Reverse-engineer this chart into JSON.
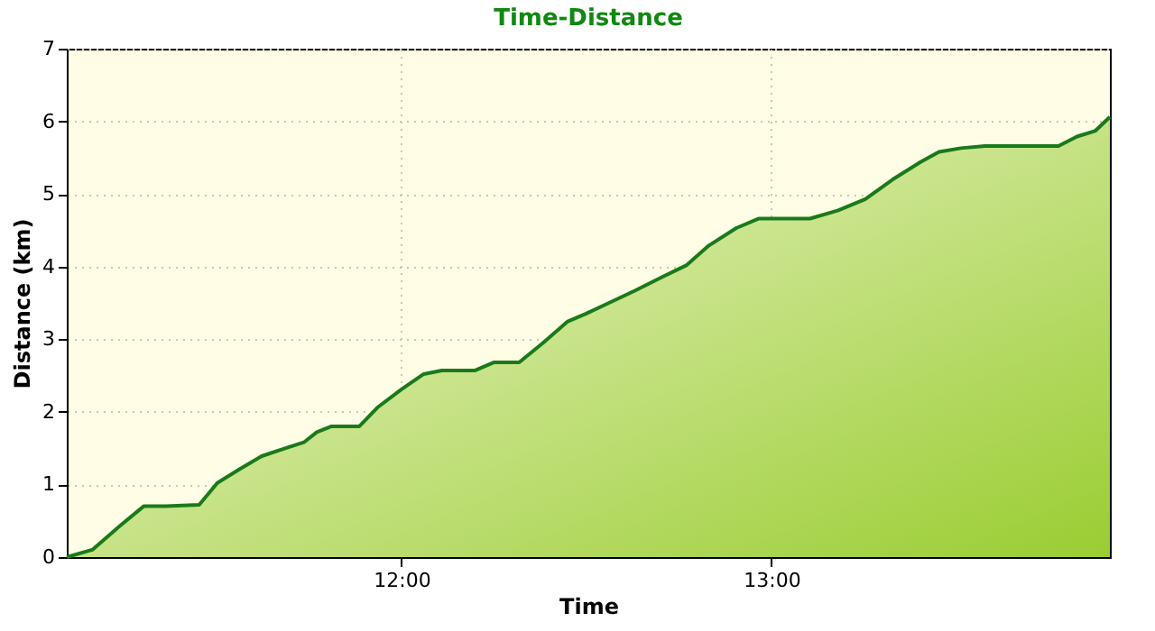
{
  "chart_data": {
    "type": "area",
    "title": "Time-Distance",
    "xlabel": "Time",
    "ylabel": "Distance (km)",
    "x": [
      11.095,
      11.164,
      11.239,
      11.303,
      11.363,
      11.453,
      11.502,
      11.562,
      11.622,
      11.687,
      11.736,
      11.771,
      11.811,
      11.886,
      11.935,
      12.0,
      12.06,
      12.109,
      12.199,
      12.249,
      12.318,
      12.383,
      12.448,
      12.498,
      12.557,
      12.632,
      12.706,
      12.771,
      12.831,
      12.905,
      12.965,
      13.005,
      13.104,
      13.179,
      13.254,
      13.328,
      13.403,
      13.453,
      13.512,
      13.577,
      13.701,
      13.776,
      13.826,
      13.876,
      13.915
    ],
    "series": [
      {
        "color": "#1a7a1a",
        "values": [
          0,
          0.1,
          0.43,
          0.7,
          0.7,
          0.72,
          1.02,
          1.21,
          1.39,
          1.5,
          1.58,
          1.72,
          1.8,
          1.8,
          2.06,
          2.31,
          2.52,
          2.57,
          2.57,
          2.68,
          2.68,
          2.95,
          3.24,
          3.35,
          3.49,
          3.67,
          3.86,
          4.02,
          4.29,
          4.53,
          4.66,
          4.66,
          4.66,
          4.77,
          4.93,
          5.2,
          5.44,
          5.58,
          5.63,
          5.66,
          5.66,
          5.66,
          5.79,
          5.87,
          6.06
        ]
      }
    ],
    "xlim": [
      11.095,
      13.915
    ],
    "xticks": [
      {
        "value": 12,
        "label": "12:00"
      },
      {
        "value": 13,
        "label": "13:00"
      }
    ],
    "ylim": [
      0,
      7
    ],
    "yticks": [
      0,
      1,
      2,
      3,
      4,
      5,
      6,
      7
    ],
    "grid": true
  }
}
